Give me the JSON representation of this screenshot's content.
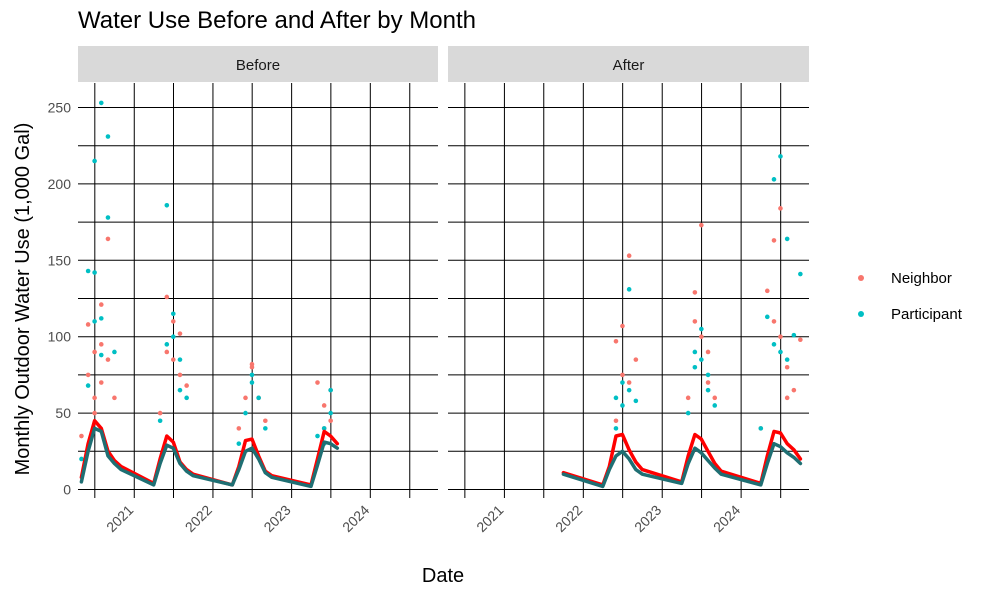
{
  "chart_data": {
    "type": "scatter",
    "title": "Water Use Before and After by Month",
    "xlabel": "Date",
    "ylabel": "Monthly Outdoor Water Use (1,000 Gal)",
    "ylim": [
      0,
      260
    ],
    "y_ticks": [
      0,
      50,
      100,
      150,
      200,
      250
    ],
    "x_ticks": [
      "2021",
      "2022",
      "2023",
      "2024"
    ],
    "xlim": [
      "2020-04-15",
      "2024-11-10"
    ],
    "grid": true,
    "legend_position": "right",
    "colors": {
      "Neighbor": "#F8766D",
      "Participant": "#00BFC4",
      "Neighbor_trend": "#FF0000",
      "Participant_trend": "#1F6F73"
    },
    "legend": [
      {
        "name": "Neighbor",
        "color": "#F8766D"
      },
      {
        "name": "Participant",
        "color": "#00BFC4"
      }
    ],
    "panels": [
      {
        "strip": "Before",
        "series": [
          {
            "name": "Neighbor",
            "kind": "points",
            "x": [
              "2020-05-01",
              "2020-06-01",
              "2020-06-01",
              "2020-07-01",
              "2020-07-01",
              "2020-07-01",
              "2020-08-01",
              "2020-08-01",
              "2020-08-01",
              "2020-09-01",
              "2020-09-01",
              "2020-10-01",
              "2021-05-01",
              "2021-06-01",
              "2021-06-01",
              "2021-07-01",
              "2021-07-01",
              "2021-08-01",
              "2021-08-01",
              "2021-09-01",
              "2022-05-01",
              "2022-06-01",
              "2022-07-01",
              "2022-07-01",
              "2022-08-01",
              "2022-09-01",
              "2023-05-01",
              "2023-06-01",
              "2023-06-01",
              "2023-07-01",
              "2023-07-01"
            ],
            "y": [
              35,
              108,
              75,
              90,
              60,
              50,
              121,
              95,
              70,
              164,
              85,
              60,
              50,
              126,
              90,
              110,
              85,
              102,
              75,
              68,
              40,
              60,
              82,
              80,
              60,
              45,
              70,
              55,
              40,
              65,
              45
            ]
          },
          {
            "name": "Participant",
            "kind": "points",
            "x": [
              "2020-05-01",
              "2020-06-01",
              "2020-06-01",
              "2020-07-01",
              "2020-07-01",
              "2020-07-01",
              "2020-08-01",
              "2020-08-01",
              "2020-08-01",
              "2020-09-01",
              "2020-09-01",
              "2020-10-01",
              "2021-05-01",
              "2021-06-01",
              "2021-06-01",
              "2021-07-01",
              "2021-07-01",
              "2021-08-01",
              "2021-08-01",
              "2021-09-01",
              "2022-05-01",
              "2022-06-01",
              "2022-07-01",
              "2022-07-01",
              "2022-08-01",
              "2022-09-01",
              "2023-05-01",
              "2023-06-01",
              "2023-06-01",
              "2023-07-01",
              "2023-07-01"
            ],
            "y": [
              20,
              68,
              143,
              142,
              110,
              215,
              253,
              112,
              88,
              231,
              178,
              90,
              45,
              186,
              95,
              115,
              100,
              85,
              65,
              60,
              30,
              50,
              75,
              70,
              60,
              40,
              35,
              40,
              30,
              65,
              50
            ]
          },
          {
            "name": "Neighbor",
            "kind": "trend",
            "x": [
              "2020-05-01",
              "2020-06-01",
              "2020-07-01",
              "2020-08-01",
              "2020-09-01",
              "2020-10-01",
              "2020-11-01",
              "2021-04-01",
              "2021-05-01",
              "2021-06-01",
              "2021-07-01",
              "2021-08-01",
              "2021-09-01",
              "2021-10-01",
              "2022-04-01",
              "2022-05-01",
              "2022-06-01",
              "2022-07-01",
              "2022-08-01",
              "2022-09-01",
              "2022-10-01",
              "2023-04-01",
              "2023-05-01",
              "2023-06-01",
              "2023-07-01",
              "2023-08-01"
            ],
            "y": [
              8,
              30,
              45,
              40,
              25,
              19,
              15,
              4,
              20,
              35,
              31,
              18,
              13,
              10,
              3,
              15,
              32,
              33,
              22,
              12,
              9,
              3,
              20,
              38,
              35,
              30
            ]
          },
          {
            "name": "Participant",
            "kind": "trend",
            "x": [
              "2020-05-01",
              "2020-06-01",
              "2020-07-01",
              "2020-08-01",
              "2020-09-01",
              "2020-10-01",
              "2020-11-01",
              "2021-04-01",
              "2021-05-01",
              "2021-06-01",
              "2021-07-01",
              "2021-08-01",
              "2021-09-01",
              "2021-10-01",
              "2022-04-01",
              "2022-05-01",
              "2022-06-01",
              "2022-07-01",
              "2022-08-01",
              "2022-09-01",
              "2022-10-01",
              "2023-04-01",
              "2023-05-01",
              "2023-06-01",
              "2023-07-01",
              "2023-08-01"
            ],
            "y": [
              5,
              25,
              40,
              38,
              22,
              17,
              13,
              3,
              17,
              29,
              27,
              17,
              12,
              9,
              3,
              13,
              25,
              27,
              20,
              11,
              8,
              2,
              16,
              31,
              30,
              27
            ]
          }
        ]
      },
      {
        "strip": "After",
        "series": [
          {
            "name": "Neighbor",
            "kind": "points",
            "x": [
              "2022-06-01",
              "2022-06-01",
              "2022-07-01",
              "2022-07-01",
              "2022-08-01",
              "2022-08-01",
              "2022-09-01",
              "2023-05-01",
              "2023-06-01",
              "2023-06-01",
              "2023-07-01",
              "2023-07-01",
              "2023-08-01",
              "2023-08-01",
              "2023-09-01",
              "2024-04-01",
              "2024-05-01",
              "2024-06-01",
              "2024-06-01",
              "2024-07-01",
              "2024-07-01",
              "2024-08-01",
              "2024-08-01",
              "2024-09-01",
              "2024-10-01"
            ],
            "y": [
              45,
              97,
              107,
              75,
              153,
              70,
              85,
              60,
              129,
              110,
              173,
              100,
              90,
              70,
              60,
              40,
              130,
              163,
              110,
              184,
              100,
              80,
              60,
              65,
              98
            ]
          },
          {
            "name": "Participant",
            "kind": "points",
            "x": [
              "2022-06-01",
              "2022-06-01",
              "2022-07-01",
              "2022-07-01",
              "2022-08-01",
              "2022-08-01",
              "2022-09-01",
              "2023-05-01",
              "2023-06-01",
              "2023-06-01",
              "2023-07-01",
              "2023-07-01",
              "2023-08-01",
              "2023-08-01",
              "2023-09-01",
              "2024-04-01",
              "2024-05-01",
              "2024-06-01",
              "2024-06-01",
              "2024-07-01",
              "2024-07-01",
              "2024-08-01",
              "2024-08-01",
              "2024-09-01",
              "2024-10-01"
            ],
            "y": [
              40,
              60,
              70,
              55,
              131,
              65,
              58,
              50,
              90,
              80,
              105,
              85,
              75,
              65,
              55,
              40,
              113,
              203,
              95,
              218,
              90,
              164,
              85,
              101,
              141
            ]
          },
          {
            "name": "Neighbor",
            "kind": "trend",
            "x": [
              "2021-10-01",
              "2022-04-01",
              "2022-05-01",
              "2022-06-01",
              "2022-07-01",
              "2022-08-01",
              "2022-09-01",
              "2022-10-01",
              "2023-04-01",
              "2023-05-01",
              "2023-06-01",
              "2023-07-01",
              "2023-08-01",
              "2023-09-01",
              "2023-10-01",
              "2024-04-01",
              "2024-05-01",
              "2024-06-01",
              "2024-07-01",
              "2024-08-01",
              "2024-09-01",
              "2024-10-01"
            ],
            "y": [
              11,
              3,
              15,
              35,
              36,
              26,
              18,
              13,
              5,
              22,
              36,
              33,
              25,
              17,
              12,
              4,
              22,
              38,
              37,
              30,
              26,
              20
            ]
          },
          {
            "name": "Participant",
            "kind": "trend",
            "x": [
              "2021-10-01",
              "2022-04-01",
              "2022-05-01",
              "2022-06-01",
              "2022-07-01",
              "2022-08-01",
              "2022-09-01",
              "2022-10-01",
              "2023-04-01",
              "2023-05-01",
              "2023-06-01",
              "2023-07-01",
              "2023-08-01",
              "2023-09-01",
              "2023-10-01",
              "2024-04-01",
              "2024-05-01",
              "2024-06-01",
              "2024-07-01",
              "2024-08-01",
              "2024-09-01",
              "2024-10-01"
            ],
            "y": [
              10,
              2,
              13,
              22,
              25,
              20,
              13,
              10,
              4,
              17,
              27,
              24,
              19,
              14,
              10,
              3,
              17,
              30,
              28,
              24,
              21,
              17
            ]
          }
        ]
      }
    ]
  }
}
